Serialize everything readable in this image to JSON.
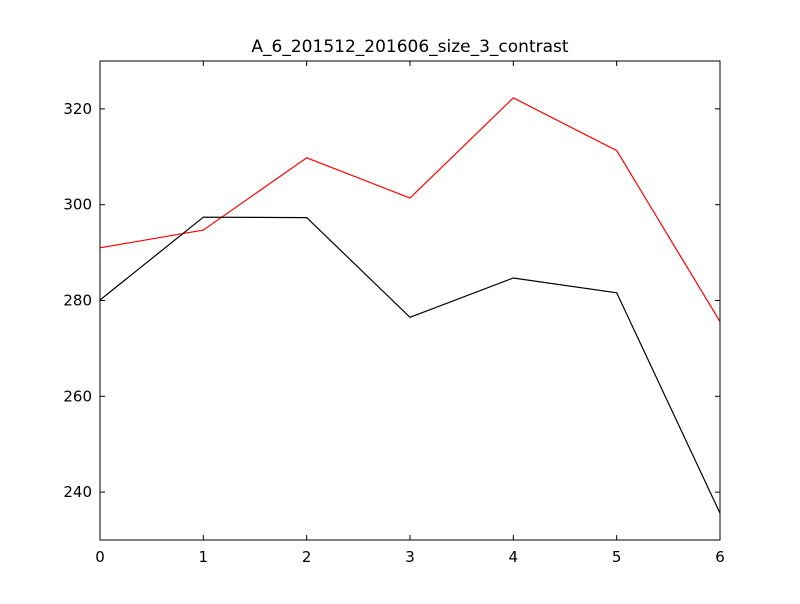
{
  "chart_data": {
    "type": "line",
    "title": "A_6_201512_201606_size_3_contrast",
    "xlabel": "",
    "ylabel": "",
    "xlim": [
      0,
      6
    ],
    "ylim": [
      230,
      330
    ],
    "xticks": [
      0,
      1,
      2,
      3,
      4,
      5,
      6
    ],
    "yticks": [
      240,
      260,
      280,
      300,
      320
    ],
    "grid": false,
    "legend": "none",
    "x": [
      0,
      1,
      2,
      3,
      4,
      5,
      6
    ],
    "series": [
      {
        "color": "#ff0000",
        "values": [
          291.0,
          294.7,
          309.8,
          301.4,
          322.3,
          311.3,
          275.6
        ]
      },
      {
        "color": "#000000",
        "values": [
          280.1,
          297.4,
          297.3,
          276.5,
          284.7,
          281.6,
          235.6
        ]
      }
    ]
  }
}
